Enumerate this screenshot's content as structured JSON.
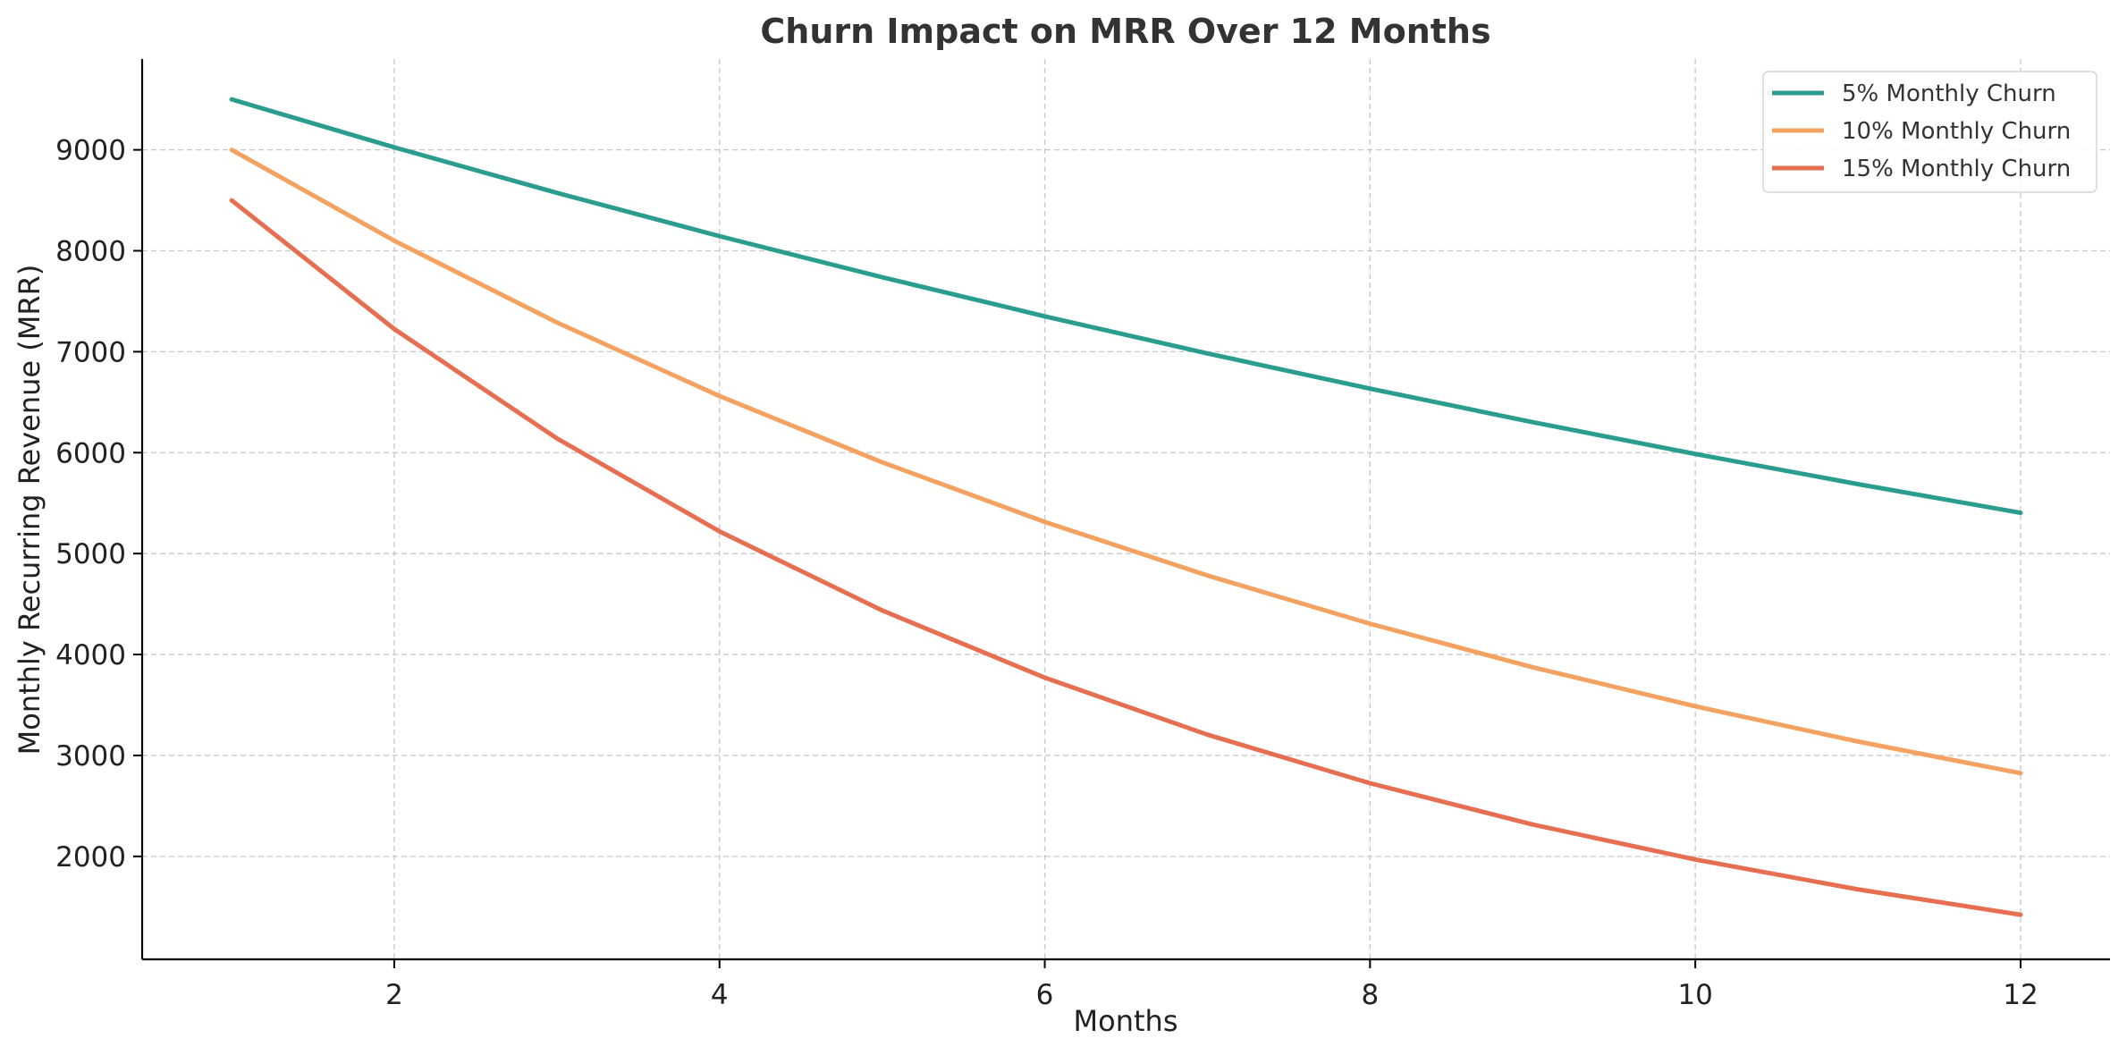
{
  "chart_data": {
    "type": "line",
    "title": "Churn Impact on MRR Over 12 Months",
    "xlabel": "Months",
    "ylabel": "Monthly Recurring Revenue (MRR)",
    "x": [
      1,
      2,
      3,
      4,
      5,
      6,
      7,
      8,
      9,
      10,
      11,
      12
    ],
    "xlim": [
      0.45,
      12.55
    ],
    "ylim": [
      980,
      9900
    ],
    "xticks": [
      2,
      4,
      6,
      8,
      10,
      12
    ],
    "yticks": [
      2000,
      3000,
      4000,
      5000,
      6000,
      7000,
      8000,
      9000
    ],
    "grid": true,
    "legend_position": "top-right",
    "series": [
      {
        "name": "5% Monthly Churn",
        "color": "#2a9d8f",
        "values": [
          9500,
          9025,
          8574,
          8145,
          7738,
          7351,
          6983,
          6634,
          6302,
          5987,
          5688,
          5404
        ]
      },
      {
        "name": "10% Monthly Churn",
        "color": "#f4a261",
        "values": [
          9000,
          8100,
          7290,
          6561,
          5905,
          5314,
          4783,
          4305,
          3874,
          3487,
          3138,
          2824
        ]
      },
      {
        "name": "15% Monthly Churn",
        "color": "#e76f51",
        "values": [
          8500,
          7225,
          6141,
          5220,
          4437,
          3771,
          3206,
          2725,
          2316,
          1969,
          1673,
          1422
        ]
      }
    ]
  }
}
